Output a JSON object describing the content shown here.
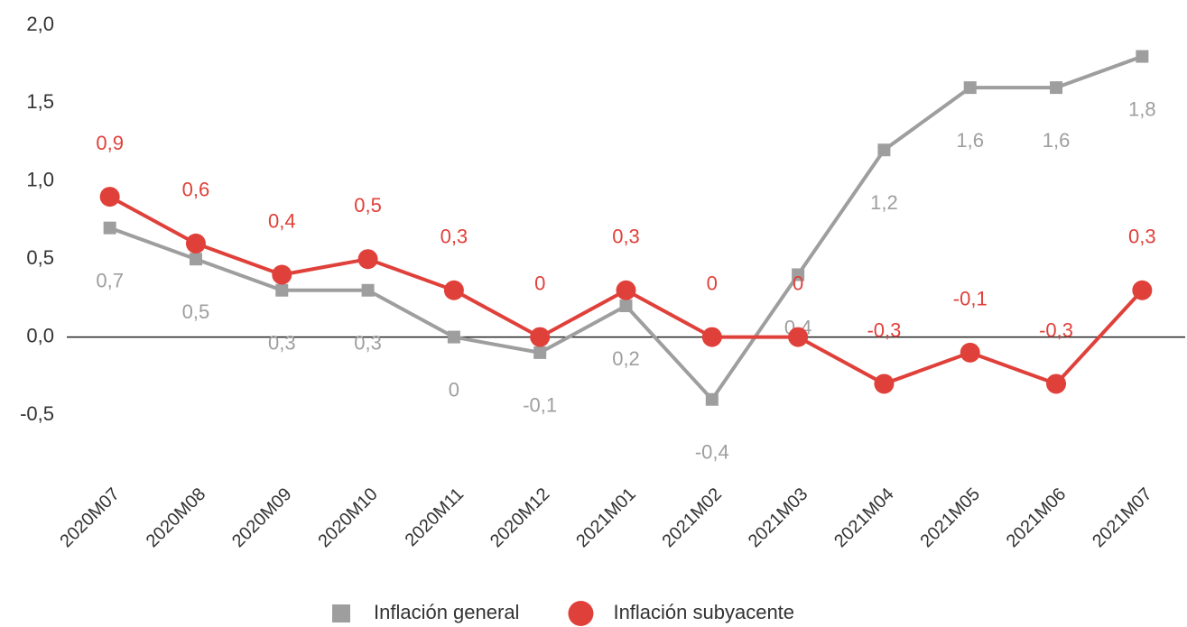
{
  "chart_data": {
    "type": "line",
    "categories": [
      "2020M07",
      "2020M08",
      "2020M09",
      "2020M10",
      "2020M11",
      "2020M12",
      "2021M01",
      "2021M02",
      "2021M03",
      "2021M04",
      "2021M05",
      "2021M06",
      "2021M07"
    ],
    "series": [
      {
        "name": "Inflación general",
        "color": "#9e9e9e",
        "marker": "square",
        "values": [
          0.7,
          0.5,
          0.3,
          0.3,
          0,
          -0.1,
          0.2,
          -0.4,
          0.4,
          1.2,
          1.6,
          1.6,
          1.8
        ],
        "value_labels": [
          "0,7",
          "0,5",
          "0,3",
          "0,3",
          "0",
          "-0,1",
          "0,2",
          "-0,4",
          "0,4",
          "1,2",
          "1,6",
          "1,6",
          "1,8"
        ]
      },
      {
        "name": "Inflación subyacente",
        "color": "#e0403a",
        "marker": "circle",
        "values": [
          0.9,
          0.6,
          0.4,
          0.5,
          0.3,
          0,
          0.3,
          0,
          0,
          -0.3,
          -0.1,
          -0.3,
          0.3
        ],
        "value_labels": [
          "0,9",
          "0,6",
          "0,4",
          "0,5",
          "0,3",
          "0",
          "0,3",
          "0",
          "0",
          "-0,3",
          "-0,1",
          "-0,3",
          "0,3"
        ]
      }
    ],
    "ylim": [
      -0.5,
      2.0
    ],
    "yticks": [
      {
        "value": -0.5,
        "label": "-0,5"
      },
      {
        "value": 0,
        "label": "0,0"
      },
      {
        "value": 0.5,
        "label": "0,5"
      },
      {
        "value": 1.0,
        "label": "1,0"
      },
      {
        "value": 1.5,
        "label": "1,5"
      },
      {
        "value": 2.0,
        "label": "2,0"
      }
    ],
    "legend": "bottom"
  }
}
